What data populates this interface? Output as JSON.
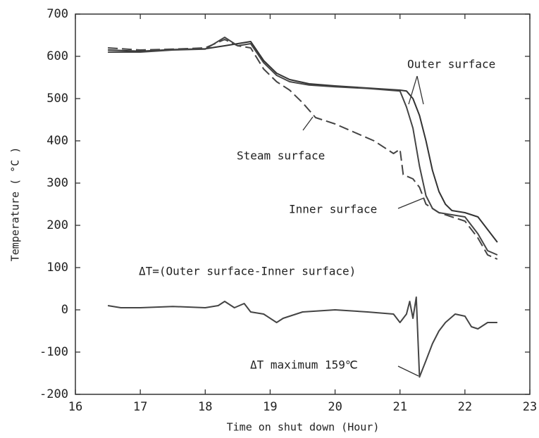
{
  "chart_data": {
    "type": "line",
    "x_label": "Time on shut down (Hour)",
    "y_label": "Temperature ( °C )",
    "xlim": [
      16,
      23
    ],
    "ylim": [
      -200,
      700
    ],
    "xticks": [
      16,
      17,
      18,
      19,
      20,
      21,
      22,
      23
    ],
    "yticks": [
      -200,
      -100,
      0,
      100,
      200,
      300,
      400,
      500,
      600,
      700
    ],
    "grid": false,
    "annotations": [
      "Outer surface",
      "Steam surface",
      "Inner surface",
      "ΔT=(Outer surface-Inner surface)",
      "ΔT maximum 159℃"
    ],
    "series": [
      {
        "name": "Outer surface",
        "color": "#333333",
        "dash": "none",
        "x": [
          16.5,
          17,
          17.5,
          18,
          18.3,
          18.5,
          18.7,
          18.9,
          19.1,
          19.3,
          19.6,
          20,
          20.5,
          21,
          21.1,
          21.2,
          21.3,
          21.4,
          21.5,
          21.6,
          21.7,
          21.8,
          22,
          22.2,
          22.35,
          22.5
        ],
        "values": [
          615,
          612,
          616,
          618,
          625,
          630,
          635,
          590,
          560,
          545,
          535,
          530,
          525,
          520,
          518,
          500,
          460,
          400,
          330,
          280,
          250,
          235,
          230,
          220,
          190,
          160
        ]
      },
      {
        "name": "Inner surface",
        "color": "#444444",
        "dash": "none",
        "x": [
          16.5,
          17,
          17.5,
          18,
          18.3,
          18.5,
          18.7,
          18.9,
          19.1,
          19.3,
          19.6,
          20,
          20.5,
          21,
          21.1,
          21.2,
          21.3,
          21.4,
          21.5,
          21.6,
          21.8,
          22,
          22.2,
          22.35,
          22.5
        ],
        "values": [
          610,
          610,
          615,
          617,
          645,
          625,
          630,
          585,
          555,
          540,
          532,
          528,
          524,
          518,
          480,
          430,
          340,
          270,
          240,
          230,
          225,
          220,
          180,
          140,
          130
        ]
      },
      {
        "name": "Steam surface",
        "color": "#444444",
        "dash": "14 6",
        "x": [
          16.5,
          17,
          17.5,
          18,
          18.3,
          18.5,
          18.7,
          18.9,
          19.1,
          19.3,
          19.5,
          19.7,
          20,
          20.3,
          20.6,
          20.8,
          20.9,
          21,
          21.05,
          21.2,
          21.3,
          21.4,
          21.6,
          21.8,
          22,
          22.2,
          22.35,
          22.5
        ],
        "values": [
          620,
          615,
          617,
          620,
          640,
          625,
          620,
          570,
          540,
          520,
          490,
          455,
          440,
          420,
          400,
          380,
          370,
          380,
          320,
          310,
          290,
          250,
          230,
          220,
          210,
          170,
          130,
          120
        ]
      },
      {
        "name": "ΔT",
        "color": "#444444",
        "dash": "none",
        "x": [
          16.5,
          16.7,
          17,
          17.5,
          18,
          18.2,
          18.3,
          18.45,
          18.6,
          18.7,
          18.9,
          19.1,
          19.2,
          19.5,
          20,
          20.5,
          20.9,
          21,
          21.1,
          21.15,
          21.2,
          21.25,
          21.3,
          21.4,
          21.5,
          21.6,
          21.7,
          21.85,
          22,
          22.1,
          22.2,
          22.35,
          22.5
        ],
        "values": [
          10,
          5,
          5,
          8,
          5,
          10,
          20,
          5,
          15,
          -5,
          -10,
          -30,
          -20,
          -5,
          0,
          -5,
          -10,
          -30,
          -10,
          20,
          -20,
          30,
          -159,
          -120,
          -80,
          -50,
          -30,
          -10,
          -15,
          -40,
          -45,
          -30,
          -30
        ]
      }
    ]
  }
}
